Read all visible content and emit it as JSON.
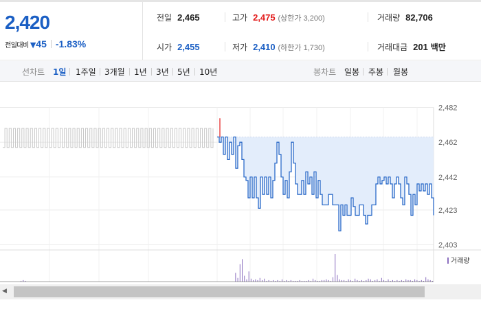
{
  "summary": {
    "current_price": "2,420",
    "change_label": "전일대비",
    "change_arrow": "▼",
    "change_value": "45",
    "change_rate": "-1.83%",
    "prev_close": {
      "label": "전일",
      "value": "2,465"
    },
    "open": {
      "label": "시가",
      "value": "2,455"
    },
    "high": {
      "label": "고가",
      "value": "2,475",
      "limit_label": "상한가",
      "limit_value": "3,200"
    },
    "low": {
      "label": "저가",
      "value": "2,410",
      "limit_label": "하한가",
      "limit_value": "1,730"
    },
    "volume": {
      "label": "거래량",
      "value": "82,706"
    },
    "trade_value": {
      "label": "거래대금",
      "value": "201",
      "unit": "백만"
    }
  },
  "tabs": {
    "line_chart_label": "선차트",
    "line_periods": [
      "1일",
      "1주일",
      "3개월",
      "1년",
      "3년",
      "5년",
      "10년"
    ],
    "active_period": "1일",
    "candle_chart_label": "봉차트",
    "candle_periods": [
      "일봉",
      "주봉",
      "월봉"
    ]
  },
  "colors": {
    "up": "#e31c1c",
    "down": "#1b5fc4",
    "prev_day_line": "#c8c8c8",
    "area_fill": "#e3edfb",
    "volume_bar": "#8b6fbf"
  },
  "volume_legend": "거래량",
  "chart_data": {
    "type": "line",
    "y_ticks": [
      2403,
      2423,
      2442,
      2462,
      2482
    ],
    "ylim": [
      2403,
      2482
    ],
    "reference_value": 2465,
    "grid": true,
    "series": [
      {
        "values": [
          2459,
          2470,
          2459,
          2470,
          2459,
          2470,
          2459,
          2470,
          2459,
          2470,
          2459,
          2470,
          2459,
          2470,
          2459,
          2470,
          2459,
          2470,
          2459,
          2470,
          2459,
          2470,
          2459,
          2470,
          2459,
          2470,
          2459,
          2470,
          2459,
          2470,
          2459,
          2470,
          2459,
          2470,
          2459,
          2470,
          2459,
          2470,
          2459,
          2470,
          2459,
          2470,
          2459,
          2470,
          2459,
          2470,
          2459,
          2470,
          2459,
          2470,
          2459,
          2470,
          2459,
          2470,
          2459,
          2470,
          2459,
          2470,
          2459,
          2470,
          2459,
          2470,
          2459,
          2470,
          2459,
          2470,
          2459,
          2470,
          2459,
          2470,
          2459,
          2470,
          2459,
          2470,
          2459,
          2470,
          2459,
          2470,
          2459,
          2470,
          2459,
          2470,
          2459,
          2470,
          2459,
          2470,
          2459,
          2470,
          2459,
          2470,
          2459,
          2470,
          2459,
          2470,
          2459,
          2470,
          2459,
          2470,
          2459,
          2470
        ]
      },
      {
        "values": [
          2465,
          2462,
          2465,
          2455,
          2465,
          2452,
          2462,
          2455,
          2465,
          2447,
          2460,
          2462,
          2452,
          2442,
          2440,
          2430,
          2442,
          2430,
          2442,
          2430,
          2424,
          2442,
          2432,
          2442,
          2432,
          2442,
          2430,
          2440,
          2450,
          2462,
          2455,
          2442,
          2432,
          2440,
          2430,
          2445,
          2462,
          2450,
          2438,
          2432,
          2432,
          2440,
          2432,
          2445,
          2438,
          2442,
          2432,
          2445,
          2430,
          2440,
          2432,
          2426,
          2426,
          2426,
          2432,
          2432,
          2426,
          2426,
          2426,
          2411,
          2426,
          2420,
          2426,
          2420,
          2420,
          2430,
          2425,
          2420,
          2420,
          2426,
          2426,
          2420,
          2415,
          2420,
          2420,
          2426,
          2426,
          2438,
          2442,
          2438,
          2440,
          2442,
          2438,
          2442,
          2438,
          2430,
          2438,
          2442,
          2438,
          2430,
          2426,
          2442,
          2438,
          2432,
          2420,
          2432,
          2426,
          2438,
          2434,
          2438,
          2434,
          2438,
          2432,
          2438,
          2430,
          2420
        ]
      }
    ],
    "volume": [
      0,
      0,
      0,
      0,
      0,
      0,
      0,
      0,
      0,
      1,
      2,
      1,
      0,
      0,
      0,
      0,
      0,
      0,
      0,
      0,
      0,
      0,
      0,
      0,
      0,
      0,
      0,
      0,
      0,
      0,
      0,
      0,
      0,
      0,
      0,
      0,
      0,
      0,
      0,
      0,
      0,
      0,
      0,
      0,
      0,
      0,
      0,
      0,
      0,
      0,
      0,
      0,
      0,
      0,
      0,
      0,
      0,
      0,
      0,
      0,
      0,
      0,
      0,
      0,
      0,
      0,
      0,
      0,
      0,
      0,
      0,
      0,
      0,
      0,
      0,
      0,
      0,
      0,
      0,
      0,
      0,
      0,
      0,
      0,
      0,
      0,
      0,
      0,
      0,
      0,
      0,
      0,
      0,
      0,
      0,
      0,
      0,
      0,
      0,
      0,
      0,
      0,
      0,
      0,
      0,
      0,
      12,
      5,
      24,
      31,
      8,
      3,
      14,
      4,
      2,
      3,
      2,
      5,
      2,
      4,
      1,
      2,
      1,
      2,
      1,
      2,
      1,
      3,
      1,
      2,
      1,
      2,
      1,
      1,
      1,
      2,
      1,
      1,
      1,
      2,
      1,
      4,
      2,
      1,
      1,
      2,
      2,
      3,
      2,
      1,
      6,
      38,
      9,
      3,
      2,
      2,
      1,
      3,
      2,
      1,
      4,
      2,
      1,
      2,
      1,
      2,
      4,
      3,
      1,
      2,
      3,
      1,
      5,
      2,
      1,
      3,
      1,
      2,
      1,
      2,
      1,
      2,
      1,
      3,
      2,
      2,
      1,
      3,
      2,
      1,
      2,
      1,
      6,
      3,
      2,
      1
    ]
  }
}
